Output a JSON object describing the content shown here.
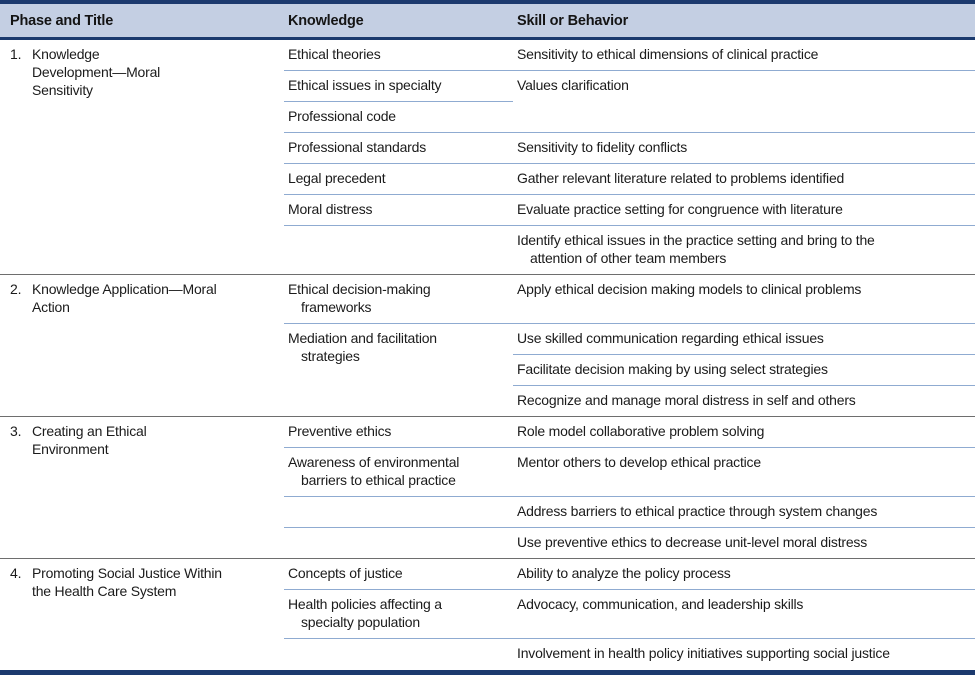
{
  "table": {
    "columns": [
      "Phase and Title",
      "Knowledge",
      "Skill or Behavior"
    ],
    "colors": {
      "navy": "#1c3a6e",
      "header_bg": "#c4cfe3",
      "row_divider": "#8fabd1",
      "phase_divider": "#6e6e6e",
      "text": "#1b1b1b"
    },
    "phases": [
      {
        "number": "1.",
        "title": "Knowledge\nDevelopment—Moral\nSensitivity",
        "knowledge": [
          {
            "text": "Ethical theories",
            "span": 1
          },
          {
            "text": "Ethical issues in specialty",
            "span": 1
          },
          {
            "text": "Professional code",
            "span": 1
          },
          {
            "text": "Professional standards",
            "span": 1
          },
          {
            "text": "Legal precedent",
            "span": 1
          },
          {
            "text": "Moral distress",
            "span": 1
          },
          {
            "text": "",
            "span": 1
          }
        ],
        "skills": [
          {
            "text": "Sensitivity to ethical dimensions of clinical practice",
            "span": 1
          },
          {
            "text": "Values clarification",
            "span": 2
          },
          {
            "text": "Sensitivity to fidelity conflicts",
            "span": 1
          },
          {
            "text": "Gather relevant literature related to problems identified",
            "span": 1
          },
          {
            "text": "Evaluate practice setting for congruence with literature",
            "span": 1
          },
          {
            "text": "Identify ethical issues in the practice setting and bring to the\nattention of other team members",
            "span": 1
          }
        ]
      },
      {
        "number": "2.",
        "title": "Knowledge Application—Moral\nAction",
        "knowledge": [
          {
            "text": "Ethical decision-making\nframeworks",
            "span": 1
          },
          {
            "text": "Mediation and facilitation\nstrategies",
            "span": 3
          }
        ],
        "skills": [
          {
            "text": "Apply ethical decision making models to clinical problems",
            "span": 1
          },
          {
            "text": "Use skilled communication regarding ethical issues",
            "span": 1
          },
          {
            "text": "Facilitate decision making by using select strategies",
            "span": 1
          },
          {
            "text": "Recognize and manage moral distress in self and others",
            "span": 1
          }
        ]
      },
      {
        "number": "3.",
        "title": "Creating an Ethical\nEnvironment",
        "knowledge": [
          {
            "text": "Preventive ethics",
            "span": 1
          },
          {
            "text": "Awareness of environmental\nbarriers to ethical practice",
            "span": 1
          },
          {
            "text": "",
            "span": 1
          },
          {
            "text": "",
            "span": 1
          }
        ],
        "skills": [
          {
            "text": "Role model collaborative problem solving",
            "span": 1
          },
          {
            "text": "Mentor others to develop ethical practice",
            "span": 1
          },
          {
            "text": "Address barriers to ethical practice through system changes",
            "span": 1
          },
          {
            "text": "Use preventive ethics to decrease unit-level moral distress",
            "span": 1
          }
        ]
      },
      {
        "number": "4.",
        "title": "Promoting Social Justice Within\nthe Health Care System",
        "knowledge": [
          {
            "text": "Concepts of justice",
            "span": 1
          },
          {
            "text": "Health policies affecting a\nspecialty population",
            "span": 1
          },
          {
            "text": "",
            "span": 1
          }
        ],
        "skills": [
          {
            "text": "Ability to analyze the policy process",
            "span": 1
          },
          {
            "text": "Advocacy, communication, and leadership skills",
            "span": 1
          },
          {
            "text": "Involvement in health policy initiatives supporting social justice",
            "span": 1
          }
        ]
      }
    ]
  }
}
